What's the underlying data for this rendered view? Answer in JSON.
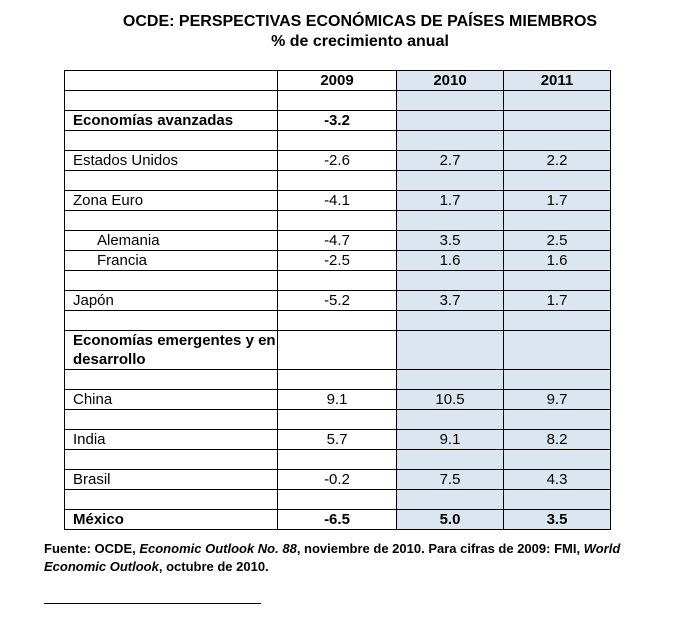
{
  "title": "OCDE: PERSPECTIVAS ECONÓMICAS DE PAÍSES MIEMBROS",
  "subtitle": "% de crecimiento anual",
  "table": {
    "headers": [
      "",
      "2009",
      "2010",
      "2011"
    ],
    "rows": {
      "economias_avanzadas": {
        "label": "Economías avanzadas",
        "v2009": "-3.2",
        "v2010": "",
        "v2011": ""
      },
      "estados_unidos": {
        "label": "Estados Unidos",
        "v2009": "-2.6",
        "v2010": "2.7",
        "v2011": "2.2"
      },
      "zona_euro": {
        "label": "Zona Euro",
        "v2009": "-4.1",
        "v2010": "1.7",
        "v2011": "1.7"
      },
      "alemania": {
        "label": "Alemania",
        "v2009": "-4.7",
        "v2010": "3.5",
        "v2011": "2.5"
      },
      "francia": {
        "label": "Francia",
        "v2009": "-2.5",
        "v2010": "1.6",
        "v2011": "1.6"
      },
      "japon": {
        "label": "Japón",
        "v2009": "-5.2",
        "v2010": "3.7",
        "v2011": "1.7"
      },
      "emergentes": {
        "label": "Economías emergentes y en desarrollo",
        "v2009": "",
        "v2010": "",
        "v2011": ""
      },
      "china": {
        "label": "China",
        "v2009": "9.1",
        "v2010": "10.5",
        "v2011": "9.7"
      },
      "india": {
        "label": "India",
        "v2009": "5.7",
        "v2010": "9.1",
        "v2011": "8.2"
      },
      "brasil": {
        "label": "Brasil",
        "v2009": "-0.2",
        "v2010": "7.5",
        "v2011": "4.3"
      },
      "mexico": {
        "label": "México",
        "v2009": "-6.5",
        "v2010": "5.0",
        "v2011": "3.5"
      }
    }
  },
  "source": {
    "prefix": "Fuente: OCDE, ",
    "pub1": "Economic Outlook No. 88",
    "mid": ", noviembre de 2010.  Para cifras de 2009: FMI, ",
    "pub2": "World Economic Outlook",
    "suffix": ", octubre de 2010."
  },
  "colors": {
    "shade": "#dce6f0"
  }
}
